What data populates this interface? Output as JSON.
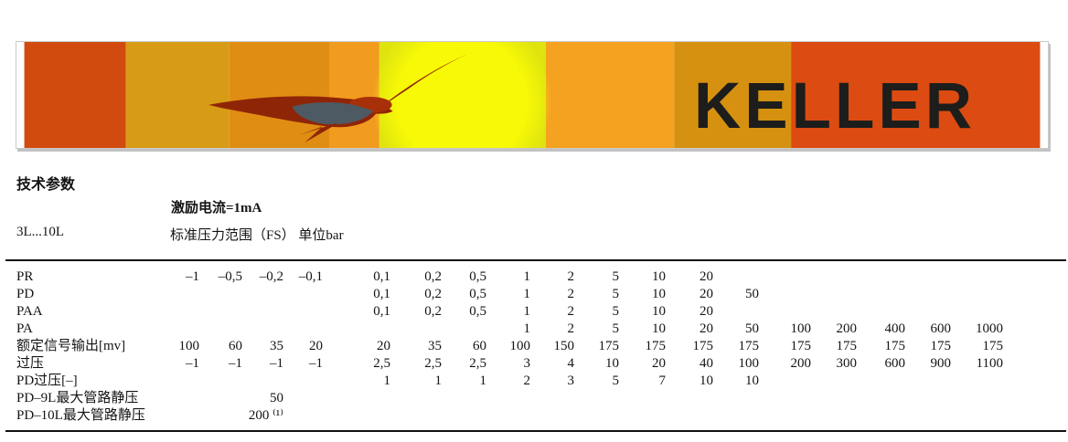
{
  "banner": {
    "logo_text": "KELLER",
    "artwork": "sunrise-with-seagull"
  },
  "header": {
    "section_title": "技术参数",
    "excitation_label": "激励电流=1mA",
    "model_range": "3L...10L",
    "range_label": "标准压力范围（FS） 单位bar"
  },
  "table": {
    "rows": [
      {
        "label": "PR",
        "cells": [
          "–1",
          "–0,5",
          "–0,2",
          "–0,1",
          "0,1",
          "0,2",
          "0,5",
          "1",
          "2",
          "5",
          "10",
          "20",
          "",
          "",
          "",
          "",
          "",
          ""
        ]
      },
      {
        "label": "PD",
        "cells": [
          "",
          "",
          "",
          "",
          "0,1",
          "0,2",
          "0,5",
          "1",
          "2",
          "5",
          "10",
          "20",
          "50",
          "",
          "",
          "",
          "",
          ""
        ]
      },
      {
        "label": "PAA",
        "cells": [
          "",
          "",
          "",
          "",
          "0,1",
          "0,2",
          "0,5",
          "1",
          "2",
          "5",
          "10",
          "20",
          "",
          "",
          "",
          "",
          "",
          ""
        ]
      },
      {
        "label": "PA",
        "cells": [
          "",
          "",
          "",
          "",
          "",
          "",
          "",
          "1",
          "2",
          "5",
          "10",
          "20",
          "50",
          "100",
          "200",
          "400",
          "600",
          "1000"
        ]
      },
      {
        "label": "额定信号输出[mv]",
        "cells": [
          "100",
          "60",
          "35",
          "20",
          "20",
          "35",
          "60",
          "100",
          "150",
          "175",
          "175",
          "175",
          "175",
          "175",
          "175",
          "175",
          "175",
          "175"
        ]
      },
      {
        "label": "过压",
        "cells": [
          "–1",
          "–1",
          "–1",
          "–1",
          "2,5",
          "2,5",
          "2,5",
          "3",
          "4",
          "10",
          "20",
          "40",
          "100",
          "200",
          "300",
          "600",
          "900",
          "1100"
        ]
      },
      {
        "label": "PD过压[–]",
        "cells": [
          "",
          "",
          "",
          "",
          "1",
          "1",
          "1",
          "2",
          "3",
          "5",
          "7",
          "10",
          "10",
          "",
          "",
          "",
          "",
          ""
        ]
      },
      {
        "label": "PD–9L最大管路静压",
        "cells": [
          "",
          "",
          "50",
          "",
          "",
          "",
          "",
          "",
          "",
          "",
          "",
          "",
          "",
          "",
          "",
          "",
          "",
          ""
        ]
      },
      {
        "label": "PD–10L最大管路静压",
        "cells": [
          "",
          "",
          "200 ⁽¹⁾",
          "",
          "",
          "",
          "",
          "",
          "",
          "",
          "",
          "",
          "",
          "",
          "",
          "",
          "",
          ""
        ]
      }
    ]
  },
  "colors": {
    "band_red": "#d14b0f",
    "band_amber": "#d89b16",
    "band_orange_dark": "#e08e13",
    "band_orange": "#f19c1e",
    "band_yellow_green": "#dfe40f",
    "sun_yellow": "#f7f906",
    "band_orange2": "#f4a21f",
    "band_gold": "#d69110",
    "band_red2": "#dc4b11",
    "bird_maroon": "#8f2507",
    "bird_head": "#a83008",
    "bird_grey": "#4e5a63",
    "logo_color": "#1d1d1b",
    "text_color": "#141414"
  }
}
